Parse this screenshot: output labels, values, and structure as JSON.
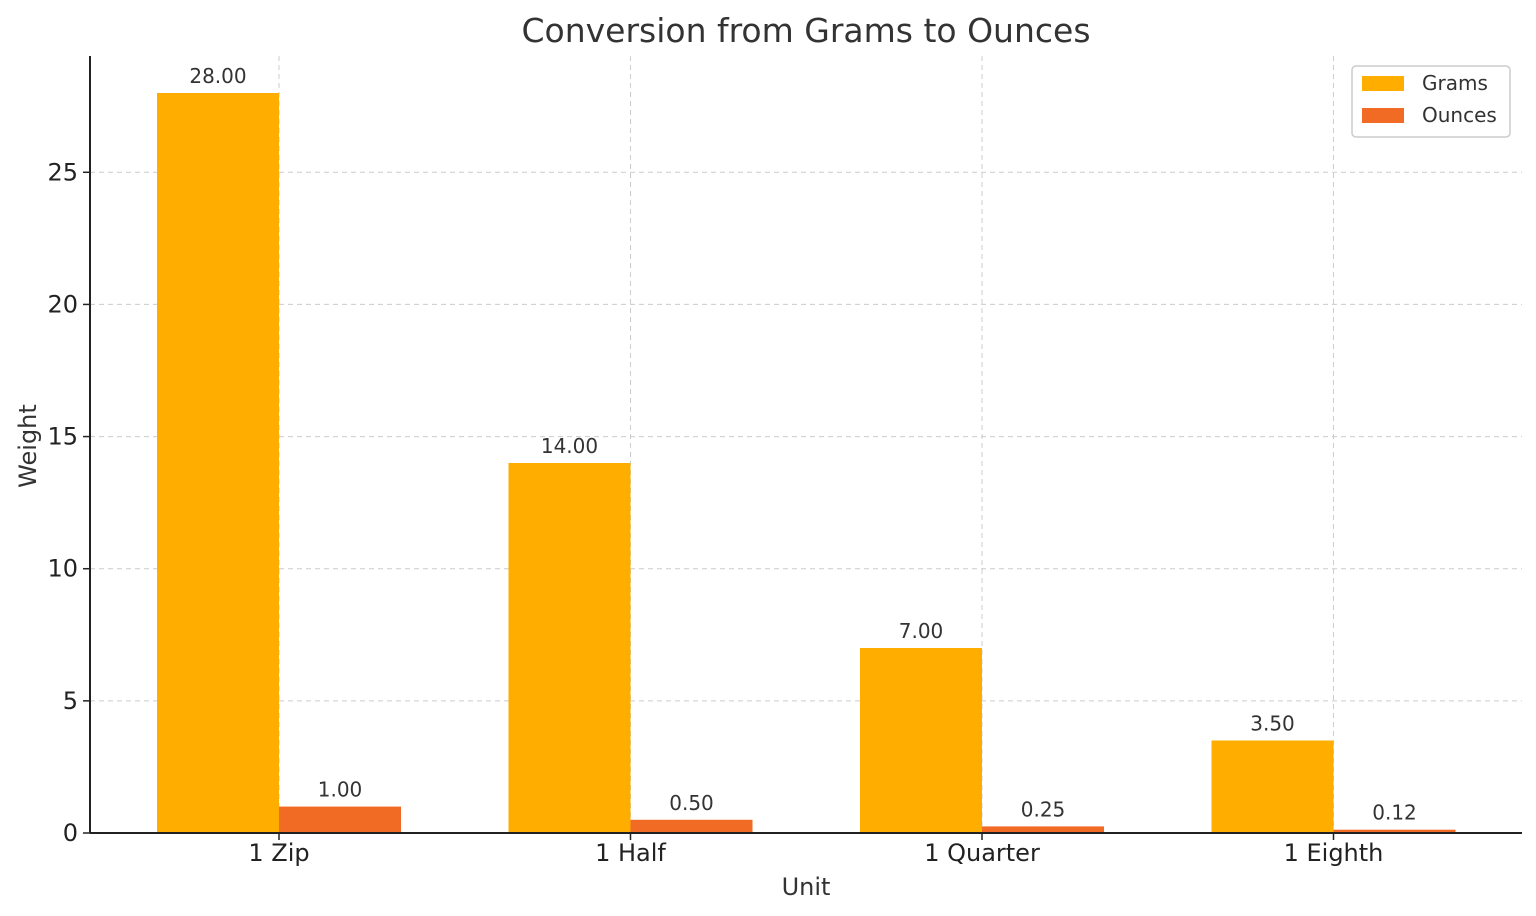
{
  "chart_data": {
    "type": "bar",
    "title": "Conversion from Grams to Ounces",
    "xlabel": "Unit",
    "ylabel": "Weight",
    "categories": [
      "1 Zip",
      "1 Half",
      "1 Quarter",
      "1 Eighth"
    ],
    "series": [
      {
        "name": "Grams",
        "values": [
          28.0,
          14.0,
          7.0,
          3.5
        ],
        "labels": [
          "28.00",
          "14.00",
          "7.00",
          "3.50"
        ],
        "color": "#FFAE00"
      },
      {
        "name": "Ounces",
        "values": [
          1.0,
          0.5,
          0.25,
          0.125
        ],
        "labels": [
          "1.00",
          "0.50",
          "0.25",
          "0.12"
        ],
        "color": "#F26B24"
      }
    ],
    "ylim": [
      0,
      29.4
    ],
    "yticks": [
      0,
      5,
      10,
      15,
      20,
      25
    ],
    "grid": true,
    "legend_position": "top-right"
  }
}
